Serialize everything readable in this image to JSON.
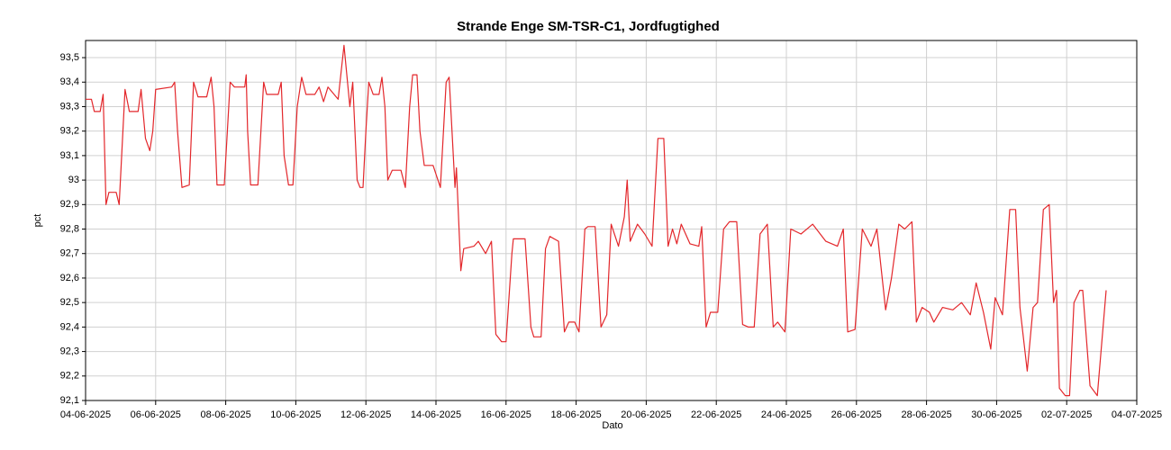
{
  "chart_data": {
    "type": "line",
    "title": "Strande Enge SM-TSR-C1, Jordfugtighed",
    "y_label": "pct",
    "x_label": "Dato",
    "color": "#e3272b",
    "grid": true,
    "xlim": [
      "2025-06-04",
      "2025-07-04"
    ],
    "xticks": [
      {
        "value": "2025-06-04",
        "label": "04-06-2025"
      },
      {
        "value": "2025-06-06",
        "label": "06-06-2025"
      },
      {
        "value": "2025-06-08",
        "label": "08-06-2025"
      },
      {
        "value": "2025-06-10",
        "label": "10-06-2025"
      },
      {
        "value": "2025-06-12",
        "label": "12-06-2025"
      },
      {
        "value": "2025-06-14",
        "label": "14-06-2025"
      },
      {
        "value": "2025-06-16",
        "label": "16-06-2025"
      },
      {
        "value": "2025-06-18",
        "label": "18-06-2025"
      },
      {
        "value": "2025-06-20",
        "label": "20-06-2025"
      },
      {
        "value": "2025-06-22",
        "label": "22-06-2025"
      },
      {
        "value": "2025-06-24",
        "label": "24-06-2025"
      },
      {
        "value": "2025-06-26",
        "label": "26-06-2025"
      },
      {
        "value": "2025-06-28",
        "label": "28-06-2025"
      },
      {
        "value": "2025-06-30",
        "label": "30-06-2025"
      },
      {
        "value": "2025-07-02",
        "label": "02-07-2025"
      },
      {
        "value": "2025-07-04",
        "label": "04-07-2025"
      }
    ],
    "ylim": [
      92.1,
      93.57
    ],
    "yticks": [
      {
        "value": 92.1,
        "label": "92,1"
      },
      {
        "value": 92.2,
        "label": "92,2"
      },
      {
        "value": 92.3,
        "label": "92,3"
      },
      {
        "value": 92.4,
        "label": "92,4"
      },
      {
        "value": 92.5,
        "label": "92,5"
      },
      {
        "value": 92.6,
        "label": "92,6"
      },
      {
        "value": 92.7,
        "label": "92,7"
      },
      {
        "value": 92.8,
        "label": "92,8"
      },
      {
        "value": 92.9,
        "label": "92,9"
      },
      93,
      {
        "value": 93.1,
        "label": "93,1"
      },
      {
        "value": 93.2,
        "label": "93,2"
      },
      {
        "value": 93.3,
        "label": "93,3"
      },
      {
        "value": 93.4,
        "label": "93,4"
      },
      {
        "value": 93.5,
        "label": "93,5"
      }
    ],
    "x": [
      "2025-06-04T00:00",
      "2025-06-04T04:00",
      "2025-06-04T06:00",
      "2025-06-04T10:00",
      "2025-06-04T12:00",
      "2025-06-04T14:00",
      "2025-06-04T16:00",
      "2025-06-04T21:00",
      "2025-06-04T23:00",
      "2025-06-05T03:00",
      "2025-06-05T06:00",
      "2025-06-05T12:00",
      "2025-06-05T14:00",
      "2025-06-05T17:00",
      "2025-06-05T20:00",
      "2025-06-05T22:00",
      "2025-06-06T00:00",
      "2025-06-06T11:00",
      "2025-06-06T13:00",
      "2025-06-06T15:00",
      "2025-06-06T18:00",
      "2025-06-06T23:00",
      "2025-06-07T02:00",
      "2025-06-07T05:00",
      "2025-06-07T11:00",
      "2025-06-07T14:00",
      "2025-06-07T16:00",
      "2025-06-07T18:00",
      "2025-06-07T23:00",
      "2025-06-08T03:00",
      "2025-06-08T06:00",
      "2025-06-08T13:00",
      "2025-06-08T14:00",
      "2025-06-08T15:00",
      "2025-06-08T17:00",
      "2025-06-08T22:00",
      "2025-06-09T02:00",
      "2025-06-09T04:00",
      "2025-06-09T12:00",
      "2025-06-09T14:00",
      "2025-06-09T16:00",
      "2025-06-09T19:00",
      "2025-06-09T22:00",
      "2025-06-10T01:00",
      "2025-06-10T04:00",
      "2025-06-10T07:00",
      "2025-06-10T13:00",
      "2025-06-10T16:00",
      "2025-06-10T19:00",
      "2025-06-10T22:00",
      "2025-06-11T05:00",
      "2025-06-11T09:00",
      "2025-06-11T13:00",
      "2025-06-11T15:00",
      "2025-06-11T18:00",
      "2025-06-11T20:00",
      "2025-06-11T22:00",
      "2025-06-12T00:00",
      "2025-06-12T02:00",
      "2025-06-12T05:00",
      "2025-06-12T09:00",
      "2025-06-12T11:00",
      "2025-06-12T13:00",
      "2025-06-12T15:00",
      "2025-06-12T18:00",
      "2025-06-13T00:00",
      "2025-06-13T03:00",
      "2025-06-13T06:00",
      "2025-06-13T08:00",
      "2025-06-13T11:00",
      "2025-06-13T13:00",
      "2025-06-13T16:00",
      "2025-06-13T22:00",
      "2025-06-14T03:00",
      "2025-06-14T07:00",
      "2025-06-14T09:00",
      "2025-06-14T11:00",
      "2025-06-14T13:00",
      "2025-06-14T14:00",
      "2025-06-14T17:00",
      "2025-06-14T19:00",
      "2025-06-15T02:00",
      "2025-06-15T05:00",
      "2025-06-15T10:00",
      "2025-06-15T14:00",
      "2025-06-15T17:00",
      "2025-06-15T21:00",
      "2025-06-16T00:00",
      "2025-06-16T04:00",
      "2025-06-16T05:00",
      "2025-06-16T13:00",
      "2025-06-16T17:00",
      "2025-06-16T19:00",
      "2025-06-17T00:00",
      "2025-06-17T03:00",
      "2025-06-17T06:00",
      "2025-06-17T12:00",
      "2025-06-17T16:00",
      "2025-06-17T19:00",
      "2025-06-17T23:00",
      "2025-06-18T02:00",
      "2025-06-18T06:00",
      "2025-06-18T08:00",
      "2025-06-18T13:00",
      "2025-06-18T17:00",
      "2025-06-18T21:00",
      "2025-06-19T00:00",
      "2025-06-19T05:00",
      "2025-06-19T09:00",
      "2025-06-19T11:00",
      "2025-06-19T13:00",
      "2025-06-19T18:00",
      "2025-06-19T23:00",
      "2025-06-20T04:00",
      "2025-06-20T08:00",
      "2025-06-20T12:00",
      "2025-06-20T15:00",
      "2025-06-20T18:00",
      "2025-06-20T21:00",
      "2025-06-21T00:00",
      "2025-06-21T06:00",
      "2025-06-21T12:00",
      "2025-06-21T14:00",
      "2025-06-21T17:00",
      "2025-06-21T20:00",
      "2025-06-22T01:00",
      "2025-06-22T05:00",
      "2025-06-22T09:00",
      "2025-06-22T14:00",
      "2025-06-22T18:00",
      "2025-06-22T22:00",
      "2025-06-23T02:00",
      "2025-06-23T06:00",
      "2025-06-23T11:00",
      "2025-06-23T15:00",
      "2025-06-23T18:00",
      "2025-06-23T23:00",
      "2025-06-24T03:00",
      "2025-06-24T10:00",
      "2025-06-24T18:00",
      "2025-06-25T03:00",
      "2025-06-25T11:00",
      "2025-06-25T15:00",
      "2025-06-25T18:00",
      "2025-06-25T23:00",
      "2025-06-26T04:00",
      "2025-06-26T10:00",
      "2025-06-26T14:00",
      "2025-06-26T20:00",
      "2025-06-27T00:00",
      "2025-06-27T05:00",
      "2025-06-27T09:00",
      "2025-06-27T14:00",
      "2025-06-27T17:00",
      "2025-06-27T21:00",
      "2025-06-28T02:00",
      "2025-06-28T05:00",
      "2025-06-28T11:00",
      "2025-06-28T18:00",
      "2025-06-29T00:00",
      "2025-06-29T06:00",
      "2025-06-29T10:00",
      "2025-06-29T15:00",
      "2025-06-29T20:00",
      "2025-06-29T23:00",
      "2025-06-30T04:00",
      "2025-06-30T09:00",
      "2025-06-30T13:00",
      "2025-06-30T16:00",
      "2025-06-30T21:00",
      "2025-07-01T01:00",
      "2025-07-01T04:00",
      "2025-07-01T08:00",
      "2025-07-01T12:00",
      "2025-07-01T15:00",
      "2025-07-01T17:00",
      "2025-07-01T19:00",
      "2025-07-01T23:00",
      "2025-07-02T02:00",
      "2025-07-02T05:00",
      "2025-07-02T09:00",
      "2025-07-02T11:00",
      "2025-07-02T16:00",
      "2025-07-02T21:00",
      "2025-07-03T03:00"
    ],
    "values": [
      93.33,
      93.33,
      93.28,
      93.28,
      93.35,
      92.9,
      92.95,
      92.95,
      92.9,
      93.37,
      93.28,
      93.28,
      93.37,
      93.17,
      93.12,
      93.2,
      93.37,
      93.38,
      93.4,
      93.2,
      92.97,
      92.98,
      93.4,
      93.34,
      93.34,
      93.42,
      93.3,
      92.98,
      92.98,
      93.4,
      93.38,
      93.38,
      93.43,
      93.2,
      92.98,
      92.98,
      93.4,
      93.35,
      93.35,
      93.4,
      93.1,
      92.98,
      92.98,
      93.3,
      93.42,
      93.35,
      93.35,
      93.38,
      93.32,
      93.38,
      93.33,
      93.55,
      93.3,
      93.4,
      93.0,
      92.97,
      92.97,
      93.2,
      93.4,
      93.35,
      93.35,
      93.42,
      93.3,
      93.0,
      93.04,
      93.04,
      92.97,
      93.3,
      93.43,
      93.43,
      93.2,
      93.06,
      93.06,
      92.97,
      93.4,
      93.42,
      93.2,
      92.97,
      93.05,
      92.63,
      92.72,
      92.73,
      92.75,
      92.7,
      92.75,
      92.37,
      92.34,
      92.34,
      92.7,
      92.76,
      92.76,
      92.4,
      92.36,
      92.36,
      92.72,
      92.77,
      92.75,
      92.38,
      92.42,
      92.42,
      92.38,
      92.8,
      92.81,
      92.81,
      92.4,
      92.45,
      92.82,
      92.73,
      92.85,
      93.0,
      92.75,
      92.82,
      92.78,
      92.73,
      93.17,
      93.17,
      92.73,
      92.8,
      92.74,
      92.82,
      92.74,
      92.73,
      92.81,
      92.4,
      92.46,
      92.46,
      92.8,
      92.83,
      92.83,
      92.41,
      92.4,
      92.4,
      92.78,
      92.82,
      92.4,
      92.42,
      92.38,
      92.8,
      92.78,
      92.82,
      92.75,
      92.73,
      92.8,
      92.38,
      92.39,
      92.8,
      92.73,
      92.8,
      92.47,
      92.6,
      92.82,
      92.8,
      92.83,
      92.42,
      92.48,
      92.46,
      92.42,
      92.48,
      92.47,
      92.5,
      92.45,
      92.58,
      92.46,
      92.31,
      92.52,
      92.45,
      92.88,
      92.88,
      92.48,
      92.22,
      92.48,
      92.5,
      92.88,
      92.9,
      92.5,
      92.55,
      92.15,
      92.12,
      92.12,
      92.5,
      92.55,
      92.55,
      92.16,
      92.12,
      92.55
    ]
  }
}
